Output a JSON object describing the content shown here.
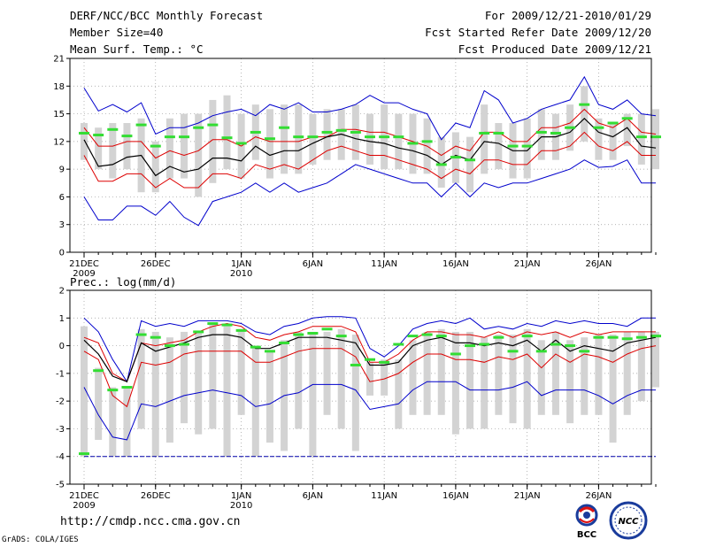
{
  "header": {
    "title": "DERF/NCC/BCC Monthly Forecast",
    "member_size": "Member Size=40",
    "variable": "Mean Surf. Temp.: °C",
    "period": "For 2009/12/21-2010/01/29",
    "started": "Fcst Started Refer Date 2009/12/20",
    "produced": "Fcst Produced Date 2009/12/21"
  },
  "footer": {
    "url": "http://cmdp.ncc.cma.gov.cn",
    "credit": "GrADS: COLA/IGES",
    "logo_bcc": "BCC",
    "logo_ncc": "NCC"
  },
  "colors": {
    "mean": "#000000",
    "spread": "#dd0000",
    "extreme": "#0000cc",
    "box": "#d3d3d3",
    "obs": "#33dd33"
  },
  "chart_data": [
    {
      "type": "box-line",
      "title": "Mean Surf. Temp.: °C",
      "ylim": [
        0,
        21
      ],
      "yticks": [
        "0",
        "3",
        "6",
        "9",
        "12",
        "15",
        "18",
        "21"
      ],
      "x_ticks": [
        {
          "day": 0,
          "label": "21DEC",
          "sub": "2009"
        },
        {
          "day": 5,
          "label": "26DEC",
          "sub": ""
        },
        {
          "day": 11,
          "label": "1JAN",
          "sub": "2010"
        },
        {
          "day": 16,
          "label": "6JAN",
          "sub": ""
        },
        {
          "day": 21,
          "label": "11JAN",
          "sub": ""
        },
        {
          "day": 26,
          "label": "16JAN",
          "sub": ""
        },
        {
          "day": 31,
          "label": "21JAN",
          "sub": ""
        },
        {
          "day": 36,
          "label": "26JAN",
          "sub": ""
        }
      ],
      "series": [
        {
          "name": "max",
          "role": "extreme",
          "values": [
            17.8,
            15.3,
            16,
            15.2,
            16.2,
            12.8,
            13.5,
            13.5,
            14,
            14.8,
            15.2,
            15.5,
            14.8,
            16,
            15.5,
            16.2,
            15.2,
            15.2,
            15.5,
            16,
            17,
            16.2,
            16.2,
            15.5,
            15,
            12.2,
            14,
            13.5,
            17.5,
            16.5,
            14,
            14.5,
            15.5,
            16,
            16.5,
            19,
            16,
            15.5,
            16.5,
            15,
            14.8
          ]
        },
        {
          "name": "upper",
          "role": "spread",
          "values": [
            13.5,
            11.5,
            11.5,
            12,
            12,
            10.2,
            11,
            10.5,
            11,
            12.2,
            12.2,
            11.5,
            12.5,
            12,
            12,
            12,
            12.5,
            12.5,
            13.3,
            13.3,
            13,
            13,
            12.5,
            12,
            11.5,
            10.5,
            11.5,
            11,
            13,
            13,
            12,
            12,
            13.5,
            13.5,
            14,
            15.5,
            14,
            13.5,
            14.5,
            13,
            12.8
          ]
        },
        {
          "name": "mean",
          "role": "mean",
          "values": [
            12.2,
            9.3,
            9.5,
            10.3,
            10.5,
            8.3,
            9.3,
            8.7,
            9,
            10.2,
            10.2,
            9.9,
            11.5,
            10.5,
            11,
            11,
            11.8,
            12.5,
            12.8,
            12.3,
            12,
            11.8,
            11.3,
            11,
            10.5,
            9.5,
            10.5,
            10,
            12,
            11.8,
            11,
            11,
            12.5,
            12.5,
            13,
            14.5,
            13,
            12.5,
            13.5,
            11.5,
            11.3
          ]
        },
        {
          "name": "lower",
          "role": "spread",
          "values": [
            10.5,
            7.7,
            7.7,
            8.5,
            8.5,
            7,
            8,
            7,
            7,
            8.5,
            8.5,
            8,
            9.5,
            9,
            9.5,
            9,
            10,
            11,
            11.5,
            11,
            10.5,
            10.5,
            10,
            9.5,
            9,
            8,
            9,
            8.5,
            10,
            10,
            9.5,
            9.5,
            11,
            11,
            11.5,
            13,
            11.5,
            11,
            12,
            10.5,
            10.5
          ]
        },
        {
          "name": "min",
          "role": "extreme",
          "values": [
            6,
            3.5,
            3.5,
            5,
            5,
            4,
            5.5,
            3.8,
            2.9,
            5.5,
            6,
            6.5,
            7.5,
            6.5,
            7.5,
            6.5,
            7,
            7.5,
            8.5,
            9.5,
            9,
            8.5,
            8,
            7.5,
            7.5,
            6,
            7.5,
            6,
            7.5,
            7,
            7.5,
            7.5,
            8,
            8.5,
            9,
            10,
            9.2,
            9.3,
            10,
            7.5,
            7.5
          ]
        },
        {
          "name": "box_top",
          "role": "box",
          "values": [
            14,
            13.5,
            14,
            14,
            14.5,
            12,
            14.5,
            15,
            15,
            16.5,
            17,
            15,
            16,
            15.5,
            16,
            16,
            15,
            15.5,
            15.5,
            16,
            15,
            16,
            15,
            15,
            14.5,
            12.5,
            13,
            12.5,
            16,
            14,
            14,
            14.5,
            15.5,
            15,
            16,
            18,
            14.5,
            14,
            15,
            15,
            15.5
          ]
        },
        {
          "name": "box_bottom",
          "role": "box",
          "values": [
            10,
            9,
            8,
            9,
            6.5,
            6.5,
            8,
            8,
            6,
            7.5,
            9,
            8,
            10,
            8,
            8.5,
            8.5,
            9.5,
            10,
            10,
            10,
            9.5,
            9,
            9,
            8.5,
            8.5,
            7,
            7.5,
            6.5,
            8.5,
            9,
            8,
            8,
            10,
            10,
            11,
            12,
            10,
            10,
            11.5,
            9.5,
            9
          ]
        },
        {
          "name": "observed",
          "role": "obs",
          "values": [
            12.9,
            12.7,
            13.3,
            12.6,
            13.8,
            11.5,
            12.5,
            12.5,
            13.5,
            13.8,
            12.4,
            11.8,
            13,
            12.3,
            13.5,
            12.5,
            12.5,
            13,
            13.2,
            13,
            12.5,
            12.5,
            12.5,
            11.8,
            12,
            9.5,
            10.3,
            10,
            12.9,
            12.9,
            11.5,
            11.5,
            13,
            12.9,
            13.5,
            16,
            13.5,
            14,
            14.5,
            12.5,
            12.5
          ]
        }
      ]
    },
    {
      "type": "box-line",
      "title": "Prec.: log(mm/d)",
      "ylim": [
        -5,
        2
      ],
      "yticks": [
        "-5",
        "-4",
        "-3",
        "-2",
        "-1",
        "0",
        "1",
        "2"
      ],
      "x_ticks": [
        {
          "day": 0,
          "label": "21DEC",
          "sub": "2009"
        },
        {
          "day": 5,
          "label": "26DEC",
          "sub": ""
        },
        {
          "day": 11,
          "label": "1JAN",
          "sub": "2010"
        },
        {
          "day": 16,
          "label": "6JAN",
          "sub": ""
        },
        {
          "day": 21,
          "label": "11JAN",
          "sub": ""
        },
        {
          "day": 26,
          "label": "16JAN",
          "sub": ""
        },
        {
          "day": 31,
          "label": "21JAN",
          "sub": ""
        },
        {
          "day": 36,
          "label": "26JAN",
          "sub": ""
        }
      ],
      "series": [
        {
          "name": "max",
          "role": "extreme",
          "values": [
            1,
            0.5,
            -0.5,
            -1.3,
            0.9,
            0.7,
            0.8,
            0.7,
            0.9,
            0.9,
            0.9,
            0.8,
            0.5,
            0.4,
            0.7,
            0.8,
            1,
            1.05,
            1.05,
            1,
            -0.1,
            -0.4,
            0,
            0.6,
            0.8,
            0.9,
            0.8,
            1,
            0.6,
            0.7,
            0.6,
            0.8,
            0.7,
            0.9,
            0.8,
            0.9,
            0.8,
            0.8,
            0.7,
            1,
            1
          ]
        },
        {
          "name": "upper",
          "role": "spread",
          "values": [
            0.3,
            0.1,
            -1,
            -1.3,
            0.1,
            0,
            0.1,
            0.2,
            0.5,
            0.7,
            0.8,
            0.7,
            0.3,
            0.2,
            0.4,
            0.5,
            0.7,
            0.7,
            0.7,
            0.5,
            -0.6,
            -0.6,
            -0.3,
            0.2,
            0.5,
            0.5,
            0.4,
            0.4,
            0.3,
            0.5,
            0.3,
            0.5,
            0.4,
            0.5,
            0.3,
            0.5,
            0.4,
            0.5,
            0.5,
            0.5,
            0.5
          ]
        },
        {
          "name": "mean",
          "role": "mean",
          "values": [
            0.2,
            -0.3,
            -1.1,
            -1.3,
            0.1,
            -0.2,
            -0.05,
            0.1,
            0.3,
            0.4,
            0.4,
            0.3,
            -0.1,
            -0.1,
            0.1,
            0.3,
            0.3,
            0.3,
            0.2,
            0.1,
            -0.7,
            -0.7,
            -0.6,
            0,
            0.2,
            0.3,
            0.1,
            0.1,
            0,
            0.1,
            0,
            0.2,
            -0.2,
            0.2,
            -0.2,
            0,
            -0.1,
            -0.2,
            0.1,
            0.2,
            0.3
          ]
        },
        {
          "name": "lower",
          "role": "spread",
          "values": [
            -0.2,
            -0.5,
            -1.8,
            -2.2,
            -0.6,
            -0.7,
            -0.6,
            -0.3,
            -0.2,
            -0.2,
            -0.2,
            -0.2,
            -0.6,
            -0.6,
            -0.4,
            -0.2,
            -0.1,
            -0.1,
            -0.1,
            -0.4,
            -1.3,
            -1.2,
            -1,
            -0.6,
            -0.3,
            -0.3,
            -0.5,
            -0.5,
            -0.6,
            -0.4,
            -0.5,
            -0.3,
            -0.8,
            -0.3,
            -0.6,
            -0.3,
            -0.4,
            -0.6,
            -0.3,
            -0.1,
            0
          ]
        },
        {
          "name": "min",
          "role": "extreme",
          "values": [
            -1.5,
            -2.5,
            -3.3,
            -3.4,
            -2.1,
            -2.2,
            -2,
            -1.8,
            -1.7,
            -1.6,
            -1.7,
            -1.8,
            -2.2,
            -2.1,
            -1.8,
            -1.7,
            -1.4,
            -1.4,
            -1.4,
            -1.6,
            -2.3,
            -2.2,
            -2.1,
            -1.6,
            -1.3,
            -1.3,
            -1.3,
            -1.6,
            -1.6,
            -1.6,
            -1.5,
            -1.3,
            -1.8,
            -1.6,
            -1.6,
            -1.6,
            -1.8,
            -2.1,
            -1.8,
            -1.6,
            -1.6
          ]
        },
        {
          "name": "box_top",
          "role": "box",
          "values": [
            0.7,
            -0.8,
            -1.5,
            -1.5,
            0.6,
            0.5,
            0.3,
            0.5,
            0.5,
            0.8,
            0.7,
            0.6,
            0,
            -0.2,
            0.2,
            0.5,
            0.5,
            0.5,
            0.6,
            0.4,
            -0.6,
            -0.5,
            -0.5,
            0.2,
            0.5,
            0.6,
            0.5,
            0.5,
            0.3,
            0.4,
            0.4,
            0.6,
            0.2,
            0.5,
            0.2,
            0.3,
            0.4,
            0.4,
            0.5,
            0.5,
            0.5
          ]
        },
        {
          "name": "box_bottom",
          "role": "box",
          "values": [
            -4,
            -3.4,
            -4,
            -4,
            -3,
            -4,
            -3.5,
            -2.8,
            -3.2,
            -3,
            -4,
            -2.5,
            -4,
            -3.5,
            -3.8,
            -3,
            -4,
            -2.5,
            -3,
            -3.8,
            -1.8,
            -1.8,
            -3,
            -2.5,
            -2.5,
            -2.5,
            -3.2,
            -3,
            -3,
            -2.5,
            -2.8,
            -3,
            -2.5,
            -2.5,
            -2.8,
            -2.5,
            -2.5,
            -3.5,
            -2.5,
            -2,
            -1.5
          ]
        },
        {
          "name": "observed",
          "role": "obs",
          "values": [
            -3.9,
            -0.9,
            -1.6,
            -1.5,
            0.4,
            0.3,
            0,
            0.05,
            0.5,
            0.8,
            0.75,
            0.55,
            -0.05,
            -0.2,
            0.1,
            0.4,
            0.45,
            0.6,
            0.35,
            -0.7,
            -0.5,
            -0.6,
            0.05,
            0.35,
            0.4,
            0.35,
            -0.3,
            0,
            0.05,
            0.3,
            -0.2,
            0.35,
            -0.2,
            0.05,
            0,
            -0.2,
            0.3,
            0.3,
            0.25,
            0.3,
            0.35
          ]
        }
      ]
    }
  ]
}
